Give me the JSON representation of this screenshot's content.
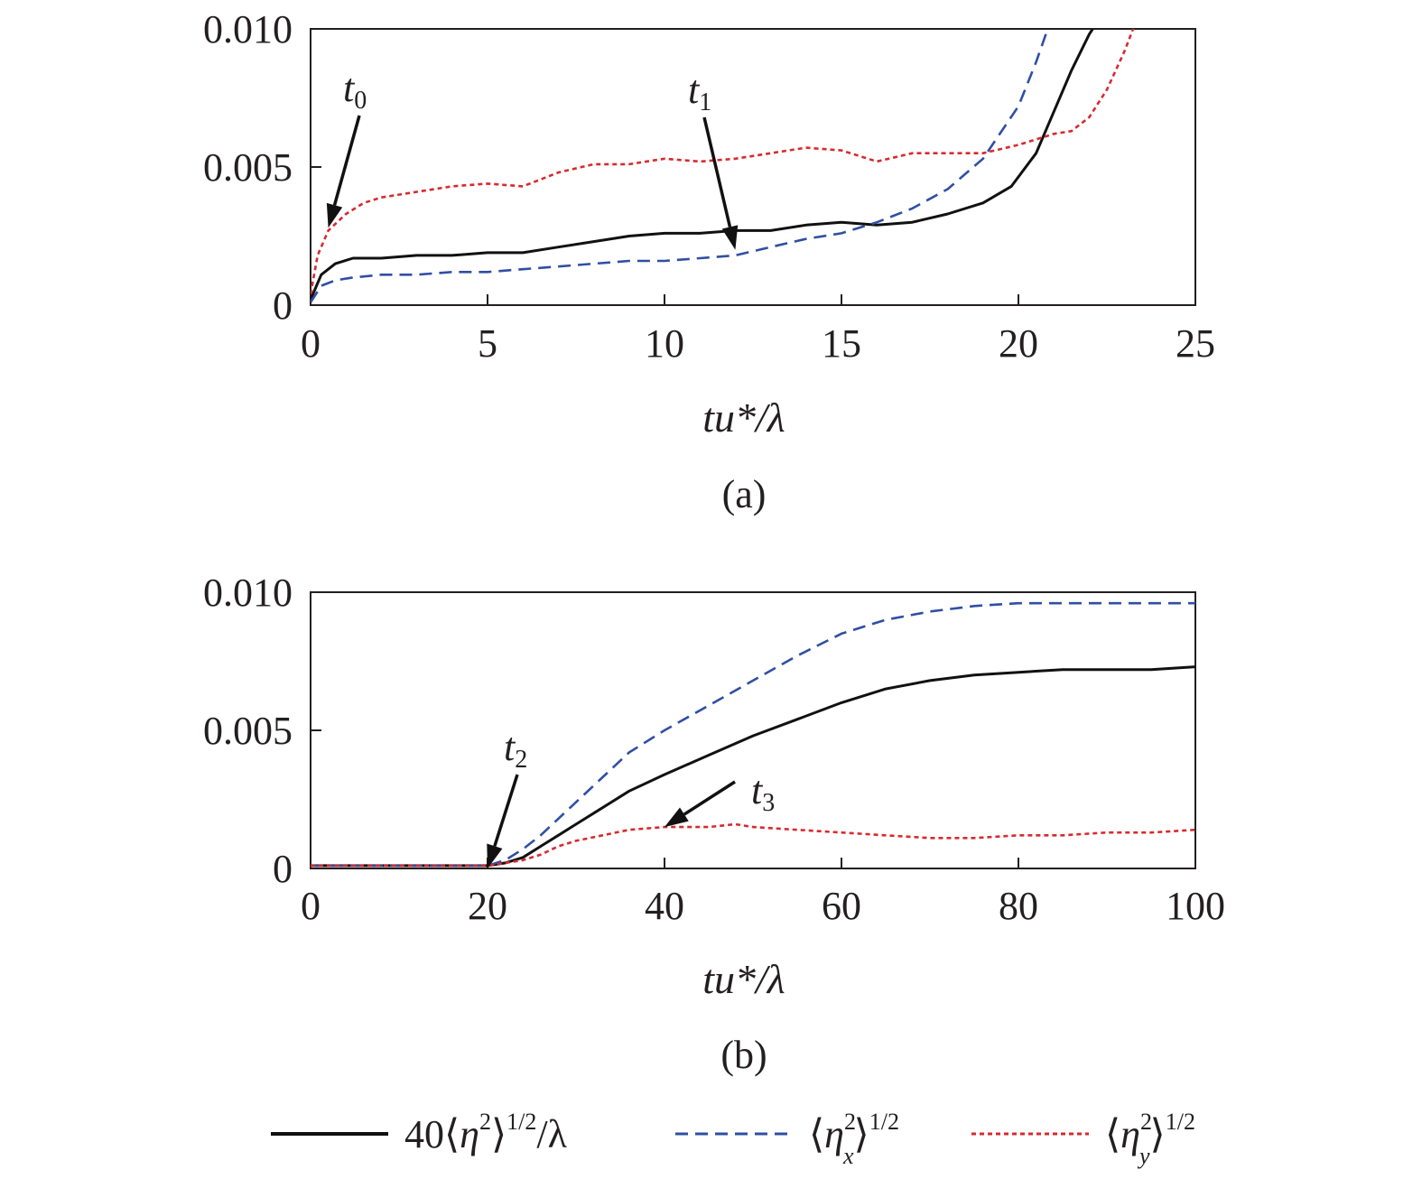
{
  "colors": {
    "total": "#111111",
    "x": "#2f4fa3",
    "y": "#d62a30",
    "axis": "#231f20"
  },
  "chart_data": [
    {
      "type": "line",
      "panel_label": "(a)",
      "xlabel": "tu*/λ",
      "xlim": [
        0,
        25
      ],
      "ylim": [
        0,
        0.01
      ],
      "x_ticks": [
        "0",
        "5",
        "10",
        "15",
        "20",
        "25"
      ],
      "y_ticks": [
        "0",
        "0.005",
        "0.010"
      ],
      "annotations": [
        {
          "label": "t",
          "sub": "0",
          "points_to": [
            0.5,
            0.0028
          ]
        },
        {
          "label": "t",
          "sub": "1",
          "points_to": [
            12,
            0.002
          ]
        }
      ],
      "series": [
        {
          "key": "total",
          "x": [
            0,
            0.3,
            0.7,
            1.2,
            2,
            3,
            4,
            5,
            6,
            7,
            8,
            9,
            10,
            11,
            12,
            13,
            14,
            15,
            16,
            17,
            18,
            19,
            19.8,
            20.5,
            21,
            21.5,
            22,
            22.2
          ],
          "y": [
            0.0002,
            0.0011,
            0.0015,
            0.0017,
            0.0017,
            0.0018,
            0.0018,
            0.0019,
            0.0019,
            0.0021,
            0.0023,
            0.0025,
            0.0026,
            0.0026,
            0.0027,
            0.0027,
            0.0029,
            0.003,
            0.0029,
            0.003,
            0.0033,
            0.0037,
            0.0043,
            0.0055,
            0.007,
            0.0085,
            0.0098,
            0.0102
          ]
        },
        {
          "key": "x",
          "x": [
            0,
            0.3,
            0.7,
            1.2,
            2,
            3,
            4,
            5,
            6,
            7,
            8,
            9,
            10,
            11,
            12,
            13,
            14,
            15,
            16,
            17,
            18,
            19,
            20,
            20.5,
            20.8
          ],
          "y": [
            0.0001,
            0.0007,
            0.0009,
            0.001,
            0.0011,
            0.0011,
            0.0012,
            0.0012,
            0.0013,
            0.0014,
            0.0015,
            0.0016,
            0.0016,
            0.0017,
            0.0018,
            0.0021,
            0.0024,
            0.0026,
            0.003,
            0.0035,
            0.0042,
            0.0053,
            0.0072,
            0.0088,
            0.0099
          ]
        },
        {
          "key": "y",
          "x": [
            0,
            0.2,
            0.5,
            1,
            1.5,
            2,
            3,
            4,
            5,
            6,
            7,
            8,
            9,
            10,
            11,
            12,
            13,
            14,
            15,
            16,
            17,
            18,
            19,
            20,
            20.5,
            21,
            21.5,
            22,
            22.5,
            23,
            23.3
          ],
          "y": [
            0.0004,
            0.0018,
            0.0027,
            0.0033,
            0.0037,
            0.0039,
            0.0041,
            0.0043,
            0.0044,
            0.0043,
            0.0048,
            0.0051,
            0.0051,
            0.0053,
            0.0052,
            0.0053,
            0.0055,
            0.0057,
            0.0056,
            0.0052,
            0.0055,
            0.0055,
            0.0055,
            0.0058,
            0.006,
            0.0062,
            0.0063,
            0.0068,
            0.0078,
            0.0092,
            0.0102
          ]
        }
      ]
    },
    {
      "type": "line",
      "panel_label": "(b)",
      "xlabel": "tu*/λ",
      "xlim": [
        0,
        100
      ],
      "ylim": [
        0,
        0.01
      ],
      "x_ticks": [
        "0",
        "20",
        "40",
        "60",
        "80",
        "100"
      ],
      "y_ticks": [
        "0",
        "0.005",
        "0.010"
      ],
      "annotations": [
        {
          "label": "t",
          "sub": "2",
          "points_to": [
            20,
            0
          ]
        },
        {
          "label": "t",
          "sub": "3",
          "points_to": [
            40,
            0.0015
          ]
        }
      ],
      "series": [
        {
          "key": "total",
          "x": [
            0,
            10,
            20,
            22,
            24,
            26,
            28,
            30,
            33,
            36,
            40,
            45,
            50,
            55,
            60,
            65,
            70,
            75,
            80,
            85,
            90,
            95,
            100
          ],
          "y": [
            0.0001,
            0.0001,
            0.0001,
            0.0002,
            0.0004,
            0.0008,
            0.0012,
            0.0016,
            0.0022,
            0.0028,
            0.0034,
            0.0041,
            0.0048,
            0.0054,
            0.006,
            0.0065,
            0.0068,
            0.007,
            0.0071,
            0.0072,
            0.0072,
            0.0072,
            0.0073
          ]
        },
        {
          "key": "x",
          "x": [
            0,
            10,
            20,
            22,
            24,
            26,
            28,
            30,
            33,
            36,
            40,
            45,
            50,
            55,
            60,
            65,
            70,
            75,
            80,
            85,
            90,
            95,
            100
          ],
          "y": [
            0.0001,
            0.0001,
            0.0001,
            0.0003,
            0.0007,
            0.0012,
            0.0018,
            0.0024,
            0.0033,
            0.0042,
            0.005,
            0.0059,
            0.0068,
            0.0077,
            0.0085,
            0.009,
            0.0093,
            0.0095,
            0.0096,
            0.0096,
            0.0096,
            0.0096,
            0.0096
          ]
        },
        {
          "key": "y",
          "x": [
            0,
            10,
            20,
            22,
            24,
            26,
            28,
            30,
            33,
            36,
            40,
            45,
            48,
            50,
            55,
            60,
            65,
            70,
            75,
            80,
            85,
            90,
            95,
            100
          ],
          "y": [
            0.0001,
            0.0001,
            0.0001,
            0.0002,
            0.0003,
            0.0005,
            0.0008,
            0.001,
            0.0012,
            0.0014,
            0.0015,
            0.0015,
            0.0016,
            0.0015,
            0.0014,
            0.0013,
            0.0012,
            0.0011,
            0.0011,
            0.0012,
            0.0012,
            0.0013,
            0.0013,
            0.0014
          ]
        }
      ]
    }
  ],
  "legend": [
    {
      "key": "total",
      "style": "solid",
      "pre": "40⟨",
      "eta": "η",
      "sub": "",
      "sup": "2",
      "post": "⟩",
      "exp": "1/2",
      "tail": "/λ"
    },
    {
      "key": "x",
      "style": "dashed",
      "pre": "⟨",
      "eta": "η",
      "sub": "x",
      "sup": "2",
      "post": "⟩",
      "exp": "1/2",
      "tail": ""
    },
    {
      "key": "y",
      "style": "dotted",
      "pre": "⟨",
      "eta": "η",
      "sub": "y",
      "sup": "2",
      "post": "⟩",
      "exp": "1/2",
      "tail": ""
    }
  ]
}
